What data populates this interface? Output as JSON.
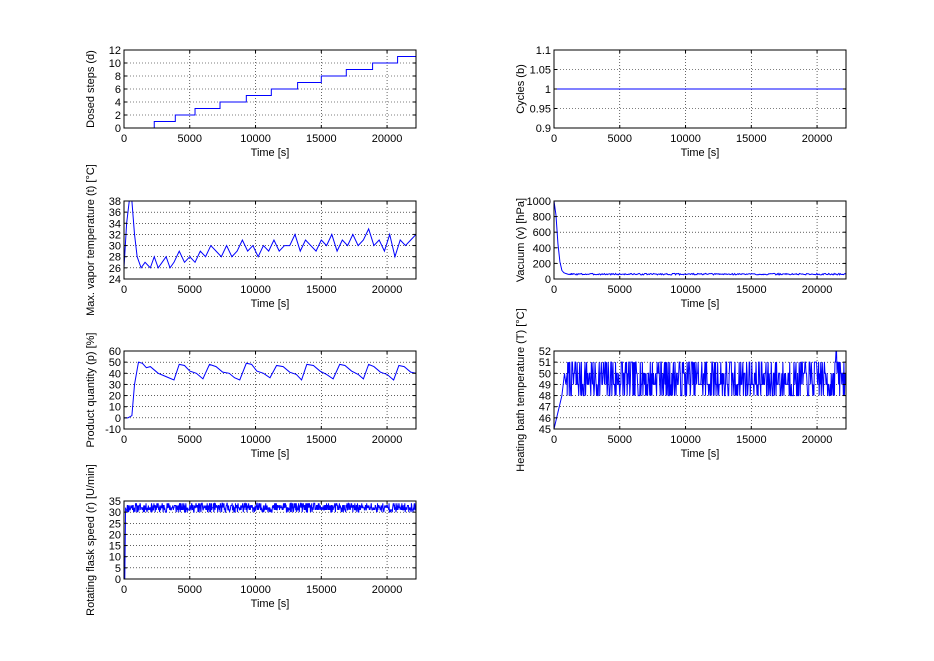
{
  "chart_data": [
    {
      "type": "line",
      "id": "dosed",
      "xlabel": "Time [s]",
      "ylabel": "Dosed steps (d)",
      "xlim": [
        0,
        22200
      ],
      "ylim": [
        0,
        12
      ],
      "xticks": [
        0,
        5000,
        10000,
        15000,
        20000
      ],
      "yticks": [
        0,
        2,
        4,
        6,
        8,
        10,
        12
      ],
      "grid": true,
      "color": "#0000ff",
      "series": [
        {
          "x": [
            0,
            2300,
            2300,
            3900,
            3900,
            5400,
            5400,
            7300,
            7300,
            9300,
            9300,
            11200,
            11200,
            13200,
            13200,
            15000,
            15000,
            16900,
            16900,
            18900,
            18900,
            20800,
            20800,
            22200
          ],
          "y": [
            0,
            0,
            1,
            1,
            2,
            2,
            3,
            3,
            4,
            4,
            5,
            5,
            6,
            6,
            7,
            7,
            8,
            8,
            9,
            9,
            10,
            10,
            11,
            11
          ]
        }
      ]
    },
    {
      "type": "line",
      "id": "cycles",
      "xlabel": "Time [s]",
      "ylabel": "Cycles (b)",
      "xlim": [
        0,
        22200
      ],
      "ylim": [
        0.9,
        1.1
      ],
      "xticks": [
        0,
        5000,
        10000,
        15000,
        20000
      ],
      "yticks": [
        0.9,
        0.95,
        1,
        1.05,
        1.1
      ],
      "grid": true,
      "color": "#0000ff",
      "series": [
        {
          "x": [
            0,
            22200
          ],
          "y": [
            1,
            1
          ]
        }
      ]
    },
    {
      "type": "line",
      "id": "vapor",
      "xlabel": "Time [s]",
      "ylabel": "Max. vapor temperature (t) [°C]",
      "xlim": [
        0,
        22200
      ],
      "ylim": [
        24,
        38
      ],
      "xticks": [
        0,
        5000,
        10000,
        15000,
        20000
      ],
      "yticks": [
        24,
        26,
        28,
        30,
        32,
        34,
        36,
        38
      ],
      "grid": true,
      "color": "#0000ff",
      "series": [
        {
          "x": [
            0,
            200,
            400,
            600,
            800,
            1000,
            1300,
            1600,
            2000,
            2300,
            2600,
            2900,
            3200,
            3500,
            3800,
            4200,
            4600,
            5000,
            5400,
            5800,
            6200,
            6600,
            7000,
            7400,
            7800,
            8200,
            8600,
            9000,
            9400,
            9800,
            10200,
            10600,
            11000,
            11400,
            11800,
            12200,
            12600,
            13000,
            13400,
            13800,
            14200,
            14600,
            15000,
            15400,
            15800,
            16200,
            16600,
            17000,
            17400,
            17800,
            18200,
            18600,
            19000,
            19400,
            19800,
            20200,
            20600,
            21000,
            21400,
            21800,
            22200
          ],
          "y": [
            26,
            34,
            38,
            38,
            32,
            28,
            26,
            27,
            26,
            28,
            26,
            27,
            28,
            26,
            27,
            29,
            27,
            28,
            27,
            29,
            28,
            30,
            29,
            28,
            30,
            28,
            29,
            31,
            29,
            30,
            28,
            30,
            29,
            31,
            29,
            30,
            30,
            32,
            29,
            31,
            30,
            29,
            31,
            30,
            32,
            29,
            31,
            30,
            32,
            30,
            31,
            33,
            30,
            31,
            29,
            32,
            28,
            31,
            30,
            31,
            32
          ]
        }
      ]
    },
    {
      "type": "line",
      "id": "vacuum",
      "xlabel": "Time [s]",
      "ylabel": "Vacuum (v) [hPa]",
      "xlim": [
        0,
        22200
      ],
      "ylim": [
        0,
        1000
      ],
      "xticks": [
        0,
        5000,
        10000,
        15000,
        20000
      ],
      "yticks": [
        0,
        200,
        400,
        600,
        800,
        1000
      ],
      "grid": true,
      "color": "#0000ff",
      "series": [
        {
          "x": [
            0,
            150,
            300,
            450,
            600,
            750,
            900,
            1100,
            1500,
            2500,
            3500,
            5000,
            6500,
            8000,
            9500,
            11000,
            12500,
            14000,
            15500,
            17000,
            18500,
            20000,
            21500,
            22200
          ],
          "y": [
            1000,
            820,
            450,
            220,
            110,
            80,
            70,
            60,
            65,
            62,
            58,
            62,
            60,
            58,
            62,
            60,
            59,
            61,
            60,
            58,
            62,
            60,
            58,
            60
          ]
        }
      ]
    },
    {
      "type": "line",
      "id": "product",
      "xlabel": "Time [s]",
      "ylabel": "Product quantity (p) [%]",
      "xlim": [
        0,
        22200
      ],
      "ylim": [
        -10,
        60
      ],
      "xticks": [
        0,
        5000,
        10000,
        15000,
        20000
      ],
      "yticks": [
        -10,
        0,
        10,
        20,
        30,
        40,
        50,
        60
      ],
      "grid": true,
      "color": "#0000ff",
      "series": [
        {
          "x": [
            0,
            300,
            600,
            800,
            1100,
            1400,
            1700,
            2000,
            2300,
            2600,
            3000,
            3400,
            3800,
            4200,
            4600,
            5000,
            5500,
            6000,
            6500,
            7000,
            7500,
            8000,
            8400,
            8800,
            9300,
            9700,
            10100,
            10600,
            11100,
            11600,
            12100,
            12600,
            13100,
            13500,
            13900,
            14400,
            14900,
            15400,
            15900,
            16400,
            16800,
            17300,
            17800,
            18200,
            18600,
            19000,
            19500,
            20000,
            20500,
            20900,
            21300,
            21800,
            22200
          ],
          "y": [
            0,
            0,
            2,
            30,
            50,
            49,
            45,
            46,
            43,
            40,
            38,
            36,
            34,
            48,
            47,
            42,
            40,
            35,
            48,
            46,
            41,
            40,
            36,
            34,
            49,
            48,
            42,
            40,
            36,
            47,
            46,
            41,
            39,
            34,
            48,
            47,
            42,
            39,
            35,
            48,
            47,
            42,
            39,
            35,
            48,
            46,
            41,
            39,
            34,
            47,
            46,
            41,
            40
          ]
        }
      ]
    },
    {
      "type": "line",
      "id": "bath",
      "xlabel": "Time [s]",
      "ylabel": "Heating bath temperature (T) [°C]",
      "xlim": [
        0,
        22200
      ],
      "ylim": [
        45,
        52
      ],
      "xticks": [
        0,
        5000,
        10000,
        15000,
        20000
      ],
      "yticks": [
        45,
        46,
        47,
        48,
        49,
        50,
        51,
        52
      ],
      "grid": true,
      "color": "#0000ff",
      "series": [
        {
          "x": [
            0,
            100,
            200,
            300,
            400,
            500,
            600,
            700,
            800,
            900,
            1000
          ],
          "y": [
            45,
            45.5,
            46,
            46.5,
            47,
            47.5,
            48,
            49,
            50,
            49,
            50
          ]
        }
      ]
    },
    {
      "type": "line",
      "id": "rotation",
      "xlabel": "Time [s]",
      "ylabel": "Rotating flask speed (r) [U/min]",
      "xlim": [
        0,
        22200
      ],
      "ylim": [
        0,
        35
      ],
      "xticks": [
        0,
        5000,
        10000,
        15000,
        20000
      ],
      "yticks": [
        0,
        5,
        10,
        15,
        20,
        25,
        30,
        35
      ],
      "grid": true,
      "color": "#0000ff",
      "series": [
        {
          "x": [
            0,
            22200
          ],
          "y": [
            32,
            32
          ]
        }
      ]
    }
  ]
}
